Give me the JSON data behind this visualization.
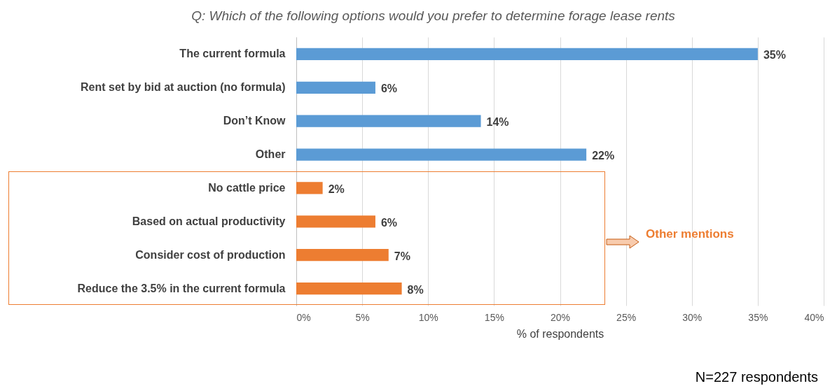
{
  "chart_data": {
    "type": "bar",
    "orientation": "horizontal",
    "title": "Q: Which of the following options would you prefer to determine forage lease rents",
    "categories": [
      "The current formula",
      "Rent set by bid at auction (no formula)",
      "Don’t Know",
      "Other",
      "No cattle price",
      "Based on actual productivity",
      "Consider cost of production",
      "Reduce the 3.5% in the current formula"
    ],
    "values": [
      35,
      6,
      14,
      22,
      2,
      6,
      7,
      8
    ],
    "colors": [
      "#5b9bd5",
      "#5b9bd5",
      "#5b9bd5",
      "#5b9bd5",
      "#ed7d31",
      "#ed7d31",
      "#ed7d31",
      "#ed7d31"
    ],
    "value_labels": [
      "35%",
      "6%",
      "14%",
      "22%",
      "2%",
      "6%",
      "7%",
      "8%"
    ],
    "xlabel": "% of respondents",
    "xlim": [
      0,
      40
    ],
    "xticks": [
      {
        "value": 0,
        "label": "0%"
      },
      {
        "value": 5,
        "label": "5%"
      },
      {
        "value": 10,
        "label": "10%"
      },
      {
        "value": 15,
        "label": "15%"
      },
      {
        "value": 20,
        "label": "20%"
      },
      {
        "value": 25,
        "label": "25%"
      },
      {
        "value": 30,
        "label": "30%"
      },
      {
        "value": 35,
        "label": "35%"
      },
      {
        "value": 40,
        "label": "40%"
      }
    ],
    "grid": "x",
    "annotations": [
      "Other mentions",
      "N=227 respondents"
    ]
  }
}
